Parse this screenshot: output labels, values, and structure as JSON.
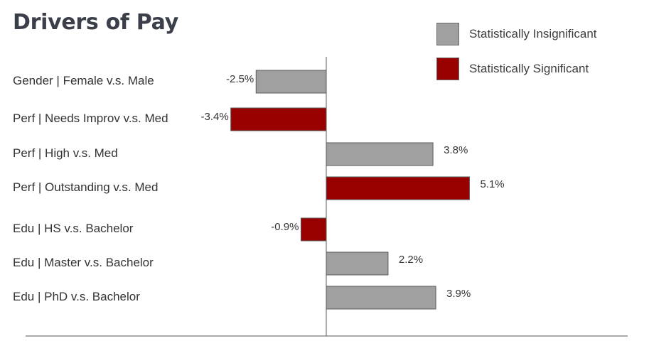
{
  "chart_data": {
    "type": "bar",
    "orientation": "horizontal",
    "title": "Drivers of Pay",
    "categories": [
      "Gender | Female v.s. Male",
      "Perf | Needs Improv v.s. Med",
      "Perf | High v.s. Med",
      "Perf | Outstanding v.s. Med",
      "Edu | HS v.s. Bachelor",
      "Edu | Master v.s. Bachelor",
      "Edu | PhD v.s. Bachelor"
    ],
    "values": [
      -2.5,
      -3.4,
      3.8,
      5.1,
      -0.9,
      2.2,
      3.9
    ],
    "value_labels": [
      "-2.5%",
      "-3.4%",
      "3.8%",
      "5.1%",
      "-0.9%",
      "2.2%",
      "3.9%"
    ],
    "significance": [
      "Statistically Insignificant",
      "Statistically Significant",
      "Statistically Insignificant",
      "Statistically Significant",
      "Statistically Significant",
      "Statistically Insignificant",
      "Statistically Insignificant"
    ],
    "legend": [
      {
        "label": "Statistically Insignificant",
        "color": "#a0a0a0"
      },
      {
        "label": "Statistically Significant",
        "color": "#990000"
      }
    ],
    "legend_position": "top-right",
    "grid": false,
    "xlabel": "",
    "ylabel": ""
  }
}
